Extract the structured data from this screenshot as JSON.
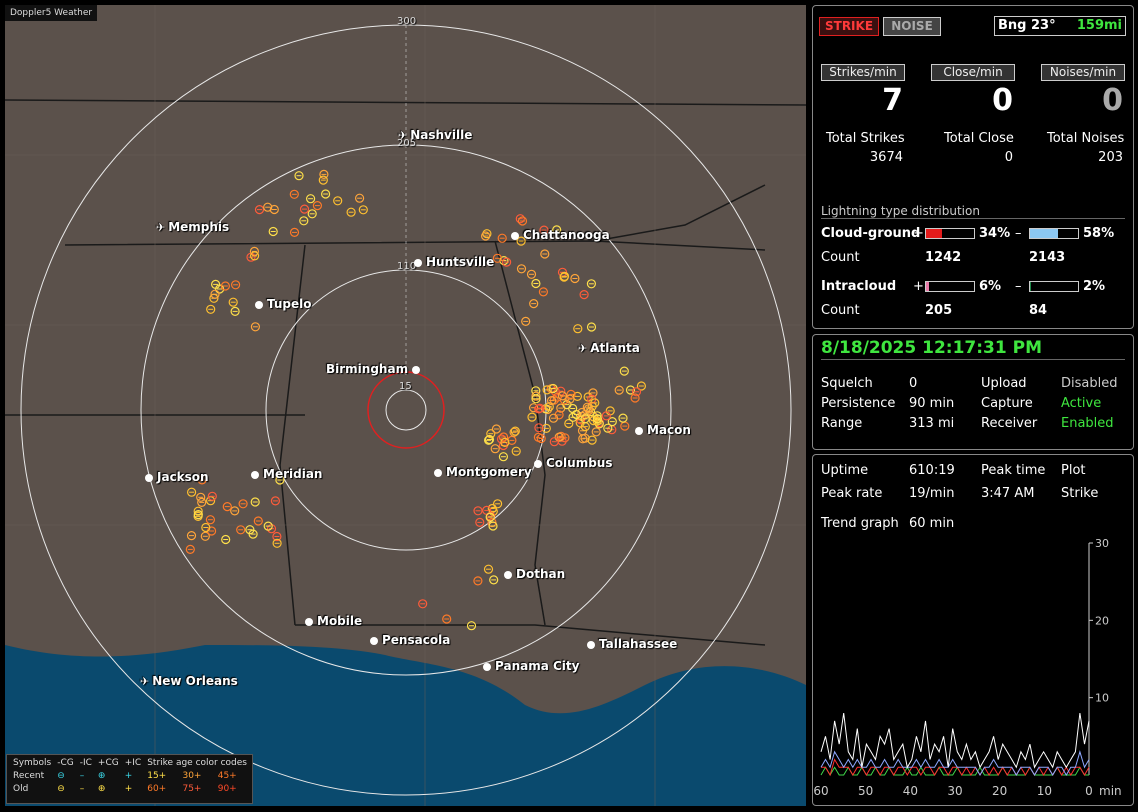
{
  "map": {
    "title": "Doppler5 Weather",
    "ring_labels": [
      "300",
      "205",
      "110",
      "15"
    ],
    "cities": [
      {
        "name": "Nashville",
        "airport": true
      },
      {
        "name": "Memphis",
        "airport": true
      },
      {
        "name": "Chattanooga",
        "airport": false
      },
      {
        "name": "Huntsville",
        "airport": false
      },
      {
        "name": "Tupelo",
        "airport": false
      },
      {
        "name": "Atlanta",
        "airport": true
      },
      {
        "name": "Birmingham",
        "airport": false
      },
      {
        "name": "Macon",
        "airport": false
      },
      {
        "name": "Jackson",
        "airport": false
      },
      {
        "name": "Meridian",
        "airport": false
      },
      {
        "name": "Montgomery",
        "airport": false
      },
      {
        "name": "Columbus",
        "airport": false
      },
      {
        "name": "Dothan",
        "airport": false
      },
      {
        "name": "Mobile",
        "airport": false
      },
      {
        "name": "Pensacola",
        "airport": false
      },
      {
        "name": "Tallahassee",
        "airport": false
      },
      {
        "name": "Panama City",
        "airport": false
      },
      {
        "name": "New Orleans",
        "airport": true
      }
    ],
    "legend": {
      "symbols_label": "Symbols",
      "headers": [
        "-CG",
        "-IC",
        "+CG",
        "+IC"
      ],
      "age_label": "Strike age color codes",
      "recent_label": "Recent",
      "old_label": "Old",
      "recent_ages": [
        "15+",
        "30+",
        "45+"
      ],
      "old_ages": [
        "60+",
        "75+",
        "90+"
      ]
    }
  },
  "status": {
    "strike_button": "STRIKE",
    "noise_button": "NOISE",
    "bearing_label": "Bng 23°",
    "distance": "159mi"
  },
  "rates": {
    "strikes_label": "Strikes/min",
    "close_label": "Close/min",
    "noises_label": "Noises/min",
    "strikes_value": "7",
    "close_value": "0",
    "noises_value": "0"
  },
  "totals": {
    "strikes_label": "Total Strikes",
    "close_label": "Total Close",
    "noises_label": "Total Noises",
    "strikes_value": "3674",
    "close_value": "0",
    "noises_value": "203"
  },
  "distribution": {
    "title": "Lightning type distribution",
    "cg_label": "Cloud-ground",
    "ic_label": "Intracloud",
    "count_label": "Count",
    "plus": "+",
    "minus": "–",
    "cg_plus_pct": "34%",
    "cg_minus_pct": "58%",
    "cg_plus_count": "1242",
    "cg_minus_count": "2143",
    "ic_plus_pct": "6%",
    "ic_minus_pct": "2%",
    "ic_plus_count": "205",
    "ic_minus_count": "84",
    "cg_plus_fraction": 0.34,
    "cg_minus_fraction": 0.58,
    "ic_plus_fraction": 0.06,
    "ic_minus_fraction": 0.02,
    "colors": {
      "cg_plus": "#e31b1b",
      "cg_minus": "#8cc8f2",
      "ic_plus": "#e87aa8",
      "ic_minus": "#1f8a4a"
    }
  },
  "settings": {
    "datetime": "8/18/2025 12:17:31 PM",
    "squelch_label": "Squelch",
    "squelch_value": "0",
    "persistence_label": "Persistence",
    "persistence_value": "90 min",
    "range_label": "Range",
    "range_value": "313 mi",
    "upload_label": "Upload",
    "upload_value": "Disabled",
    "capture_label": "Capture",
    "capture_value": "Active",
    "receiver_label": "Receiver",
    "receiver_value": "Enabled"
  },
  "stats": {
    "uptime_label": "Uptime",
    "uptime_value": "610:19",
    "peak_time_label": "Peak time",
    "plot_label": "Plot",
    "peak_rate_label": "Peak rate",
    "peak_rate_value": "19/min",
    "peak_time_value": "3:47 AM",
    "plot_value": "Strike",
    "trend_label": "Trend graph",
    "trend_value": "60 min"
  },
  "chart_data": {
    "type": "line",
    "x_ticks": [
      "60",
      "50",
      "40",
      "30",
      "20",
      "10",
      "0"
    ],
    "x_unit": "min",
    "y_ticks": [
      "30",
      "20",
      "10"
    ],
    "ylim": [
      0,
      30
    ],
    "xlim": [
      60,
      0
    ],
    "series": [
      {
        "color": "#ffffff",
        "values": [
          3,
          5,
          2,
          7,
          4,
          8,
          3,
          2,
          6,
          1,
          4,
          3,
          2,
          5,
          4,
          6,
          2,
          3,
          4,
          1,
          2,
          5,
          3,
          7,
          2,
          4,
          3,
          5,
          1,
          6,
          3,
          2,
          4,
          2,
          3,
          1,
          2,
          3,
          5,
          2,
          4,
          3,
          2,
          1,
          3,
          2,
          4,
          1,
          2,
          3,
          2,
          1,
          3,
          2,
          1,
          2,
          3,
          8,
          4,
          7
        ]
      },
      {
        "color": "#8fa8ff",
        "values": [
          1,
          2,
          1,
          3,
          2,
          1,
          2,
          1,
          2,
          1,
          1,
          2,
          1,
          1,
          2,
          1,
          1,
          2,
          1,
          1,
          1,
          2,
          1,
          2,
          1,
          1,
          2,
          1,
          1,
          2,
          1,
          1,
          1,
          1,
          1,
          0,
          1,
          1,
          2,
          1,
          1,
          1,
          1,
          0,
          1,
          1,
          1,
          0,
          1,
          1,
          1,
          0,
          1,
          1,
          0,
          1,
          1,
          3,
          1,
          2
        ]
      },
      {
        "color": "#ff3030",
        "values": [
          1,
          1,
          0,
          2,
          1,
          1,
          1,
          0,
          1,
          1,
          0,
          1,
          1,
          0,
          1,
          1,
          0,
          1,
          1,
          0,
          1,
          1,
          0,
          1,
          1,
          0,
          1,
          1,
          0,
          1,
          1,
          0,
          1,
          0,
          1,
          0,
          1,
          0,
          1,
          0,
          1,
          0,
          1,
          0,
          1,
          0,
          1,
          0,
          1,
          0,
          1,
          0,
          1,
          0,
          1,
          0,
          1,
          1,
          0,
          1
        ]
      },
      {
        "color": "#3fd94a",
        "values": [
          0,
          1,
          0,
          1,
          0,
          0,
          1,
          0,
          0,
          1,
          0,
          0,
          1,
          0,
          0,
          1,
          0,
          0,
          0,
          1,
          0,
          0,
          1,
          0,
          0,
          0,
          1,
          0,
          0,
          0,
          1,
          0,
          0,
          0,
          0,
          1,
          0,
          0,
          0,
          0,
          1,
          0,
          0,
          0,
          0,
          0,
          1,
          0,
          0,
          0,
          0,
          0,
          1,
          0,
          0,
          0,
          0,
          1,
          0,
          0
        ]
      }
    ]
  }
}
